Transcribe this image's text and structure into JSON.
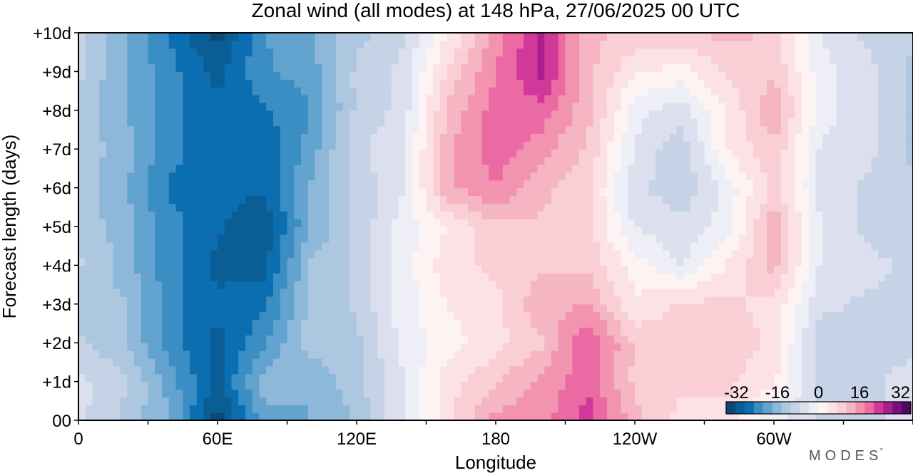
{
  "chart_data": {
    "type": "heatmap",
    "title": "Zonal wind (all modes) at 148 hPa,  27/06/2025  00 UTC",
    "xlabel": "Longitude",
    "ylabel": "Forecast length (days)",
    "x_ticks": [
      "0",
      "60E",
      "120E",
      "180",
      "120W",
      "60W"
    ],
    "x_tick_values": [
      0,
      60,
      120,
      180,
      240,
      300
    ],
    "xlim": [
      0,
      360
    ],
    "y_ticks": [
      "00",
      "+1d",
      "+2d",
      "+3d",
      "+4d",
      "+5d",
      "+6d",
      "+7d",
      "+8d",
      "+9d",
      "+10d"
    ],
    "y_tick_values": [
      0,
      1,
      2,
      3,
      4,
      5,
      6,
      7,
      8,
      9,
      10
    ],
    "ylim": [
      0,
      10
    ],
    "colorbar": {
      "tick_labels": [
        "-32",
        "-16",
        "0",
        "16",
        "32"
      ],
      "tick_values": [
        -32,
        -16,
        0,
        16,
        32
      ],
      "range": [
        -36,
        36
      ],
      "colors": [
        "#0b4a74",
        "#0a5d95",
        "#0b6eb0",
        "#3b8ec4",
        "#62a3cf",
        "#8db8d9",
        "#acc7df",
        "#c6d2e6",
        "#dcdfee",
        "#eeeef6",
        "#fdf3f3",
        "#fce2e4",
        "#f9cfd5",
        "#f5b5c2",
        "#f294b0",
        "#ec6aa3",
        "#d2389a",
        "#a91f8f",
        "#7b0f7e",
        "#4d0960"
      ]
    },
    "longitudes": [
      0,
      20,
      40,
      60,
      80,
      100,
      120,
      140,
      160,
      180,
      200,
      220,
      240,
      260,
      280,
      300,
      320,
      340,
      360
    ],
    "days": [
      0,
      1,
      2,
      3,
      4,
      5,
      6,
      7,
      8,
      9,
      10
    ],
    "values": [
      [
        -6,
        -12,
        -18,
        -34,
        -20,
        -18,
        -14,
        -4,
        6,
        16,
        16,
        24,
        12,
        6,
        6,
        -3,
        -8,
        -8,
        -6
      ],
      [
        -6,
        -10,
        -20,
        -30,
        -16,
        -18,
        -12,
        -4,
        6,
        10,
        16,
        20,
        10,
        8,
        8,
        4,
        -8,
        -8,
        -6
      ],
      [
        -10,
        -14,
        -24,
        -30,
        -22,
        -12,
        -12,
        -2,
        2,
        6,
        10,
        22,
        10,
        8,
        10,
        6,
        -10,
        -8,
        -8
      ],
      [
        -14,
        -14,
        -24,
        -28,
        -26,
        -14,
        -10,
        -2,
        4,
        6,
        14,
        14,
        4,
        8,
        8,
        6,
        -6,
        -8,
        -8
      ],
      [
        -10,
        -16,
        -24,
        -30,
        -30,
        -14,
        -10,
        -2,
        6,
        8,
        10,
        10,
        2,
        -4,
        4,
        12,
        -4,
        -6,
        -8
      ],
      [
        -12,
        -16,
        -24,
        -28,
        -32,
        -18,
        -10,
        -2,
        4,
        10,
        10,
        8,
        -4,
        -6,
        -2,
        14,
        -4,
        -8,
        -10
      ],
      [
        -12,
        -18,
        -26,
        -28,
        -28,
        -18,
        -10,
        -4,
        14,
        18,
        12,
        8,
        -6,
        -10,
        -2,
        8,
        -4,
        -8,
        -10
      ],
      [
        -12,
        -16,
        -24,
        -28,
        -28,
        -20,
        -8,
        -4,
        14,
        20,
        16,
        10,
        -4,
        -10,
        4,
        10,
        -4,
        -6,
        -12
      ],
      [
        -12,
        -18,
        -24,
        -28,
        -26,
        -22,
        -10,
        -6,
        12,
        20,
        20,
        12,
        -2,
        -6,
        4,
        14,
        -2,
        -6,
        -12
      ],
      [
        -10,
        -18,
        -24,
        -30,
        -22,
        -20,
        -10,
        -6,
        8,
        18,
        26,
        12,
        4,
        2,
        8,
        10,
        -2,
        -6,
        -12
      ],
      [
        -10,
        -18,
        -26,
        -34,
        -22,
        -18,
        -12,
        -8,
        4,
        16,
        26,
        12,
        10,
        10,
        12,
        10,
        -4,
        -8,
        -10
      ]
    ]
  },
  "brand": {
    "text": "MODES",
    "mark": "°"
  }
}
